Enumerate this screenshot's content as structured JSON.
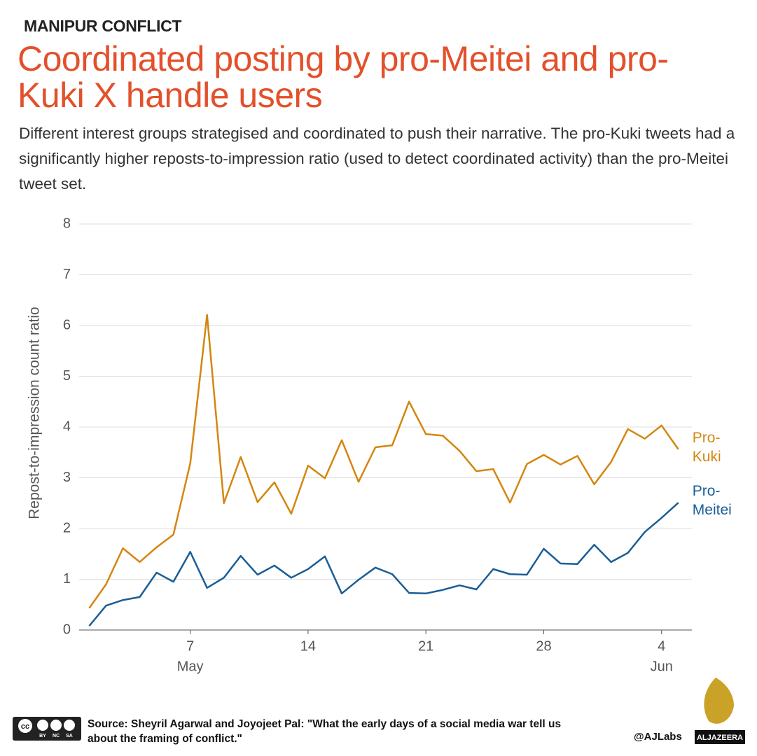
{
  "kicker": "MANIPUR CONFLICT",
  "chart_data": {
    "type": "line",
    "title": "Coordinated posting by pro-Meitei and pro-Kuki X handle users",
    "subtitle": "Different interest groups strategised and coordinated to push their narrative. The pro-Kuki tweets had a significantly higher reposts-to-impression ratio (used to detect coordinated activity) than the pro-Meitei tweet set.",
    "y_label": "Repost-to-impression count ratio",
    "x": [
      1,
      2,
      3,
      4,
      5,
      6,
      7,
      8,
      9,
      10,
      11,
      12,
      13,
      14,
      15,
      16,
      17,
      18,
      19,
      20,
      21,
      22,
      23,
      24,
      25,
      26,
      27,
      28,
      29,
      30,
      31,
      32,
      33,
      34,
      35,
      36
    ],
    "series": [
      {
        "name": "Pro-Kuki",
        "color": "#d4860f",
        "values": [
          0.43,
          0.9,
          1.61,
          1.34,
          1.63,
          1.88,
          3.28,
          6.21,
          2.5,
          3.41,
          2.52,
          2.91,
          2.29,
          3.24,
          2.99,
          3.74,
          2.92,
          3.6,
          3.64,
          4.5,
          3.86,
          3.83,
          3.53,
          3.13,
          3.17,
          2.51,
          3.27,
          3.45,
          3.26,
          3.43,
          2.87,
          3.31,
          3.96,
          3.77,
          4.03,
          3.56
        ]
      },
      {
        "name": "Pro-Meitei",
        "color": "#1a5e96",
        "values": [
          0.08,
          0.48,
          0.59,
          0.65,
          1.13,
          0.95,
          1.54,
          0.83,
          1.03,
          1.46,
          1.09,
          1.27,
          1.03,
          1.2,
          1.45,
          0.72,
          0.99,
          1.23,
          1.1,
          0.73,
          0.72,
          0.79,
          0.88,
          0.8,
          1.2,
          1.1,
          1.09,
          1.6,
          1.31,
          1.3,
          1.68,
          1.34,
          1.52,
          1.93,
          2.21,
          2.51
        ]
      }
    ],
    "xlim": [
      0.4,
      36.8
    ],
    "xticks": [
      7,
      14,
      21,
      28,
      {
        "value": 35,
        "label": "4"
      }
    ],
    "month_labels": [
      {
        "value": 7,
        "label": "May"
      },
      {
        "value": 35,
        "label": "Jun"
      }
    ],
    "ylim": [
      0,
      8
    ],
    "yticks": [
      0,
      1,
      2,
      3,
      4,
      5,
      6,
      7,
      8
    ],
    "grid": true
  },
  "footer": {
    "source": "Source:  Sheyril Agarwal and Joyojeet Pal: \"What the early days of a social media war tell us about the framing of conflict.\"",
    "license": [
      "BY",
      "NC",
      "SA"
    ],
    "credit": "@AJLabs",
    "brand": "ALJAZEERA"
  }
}
